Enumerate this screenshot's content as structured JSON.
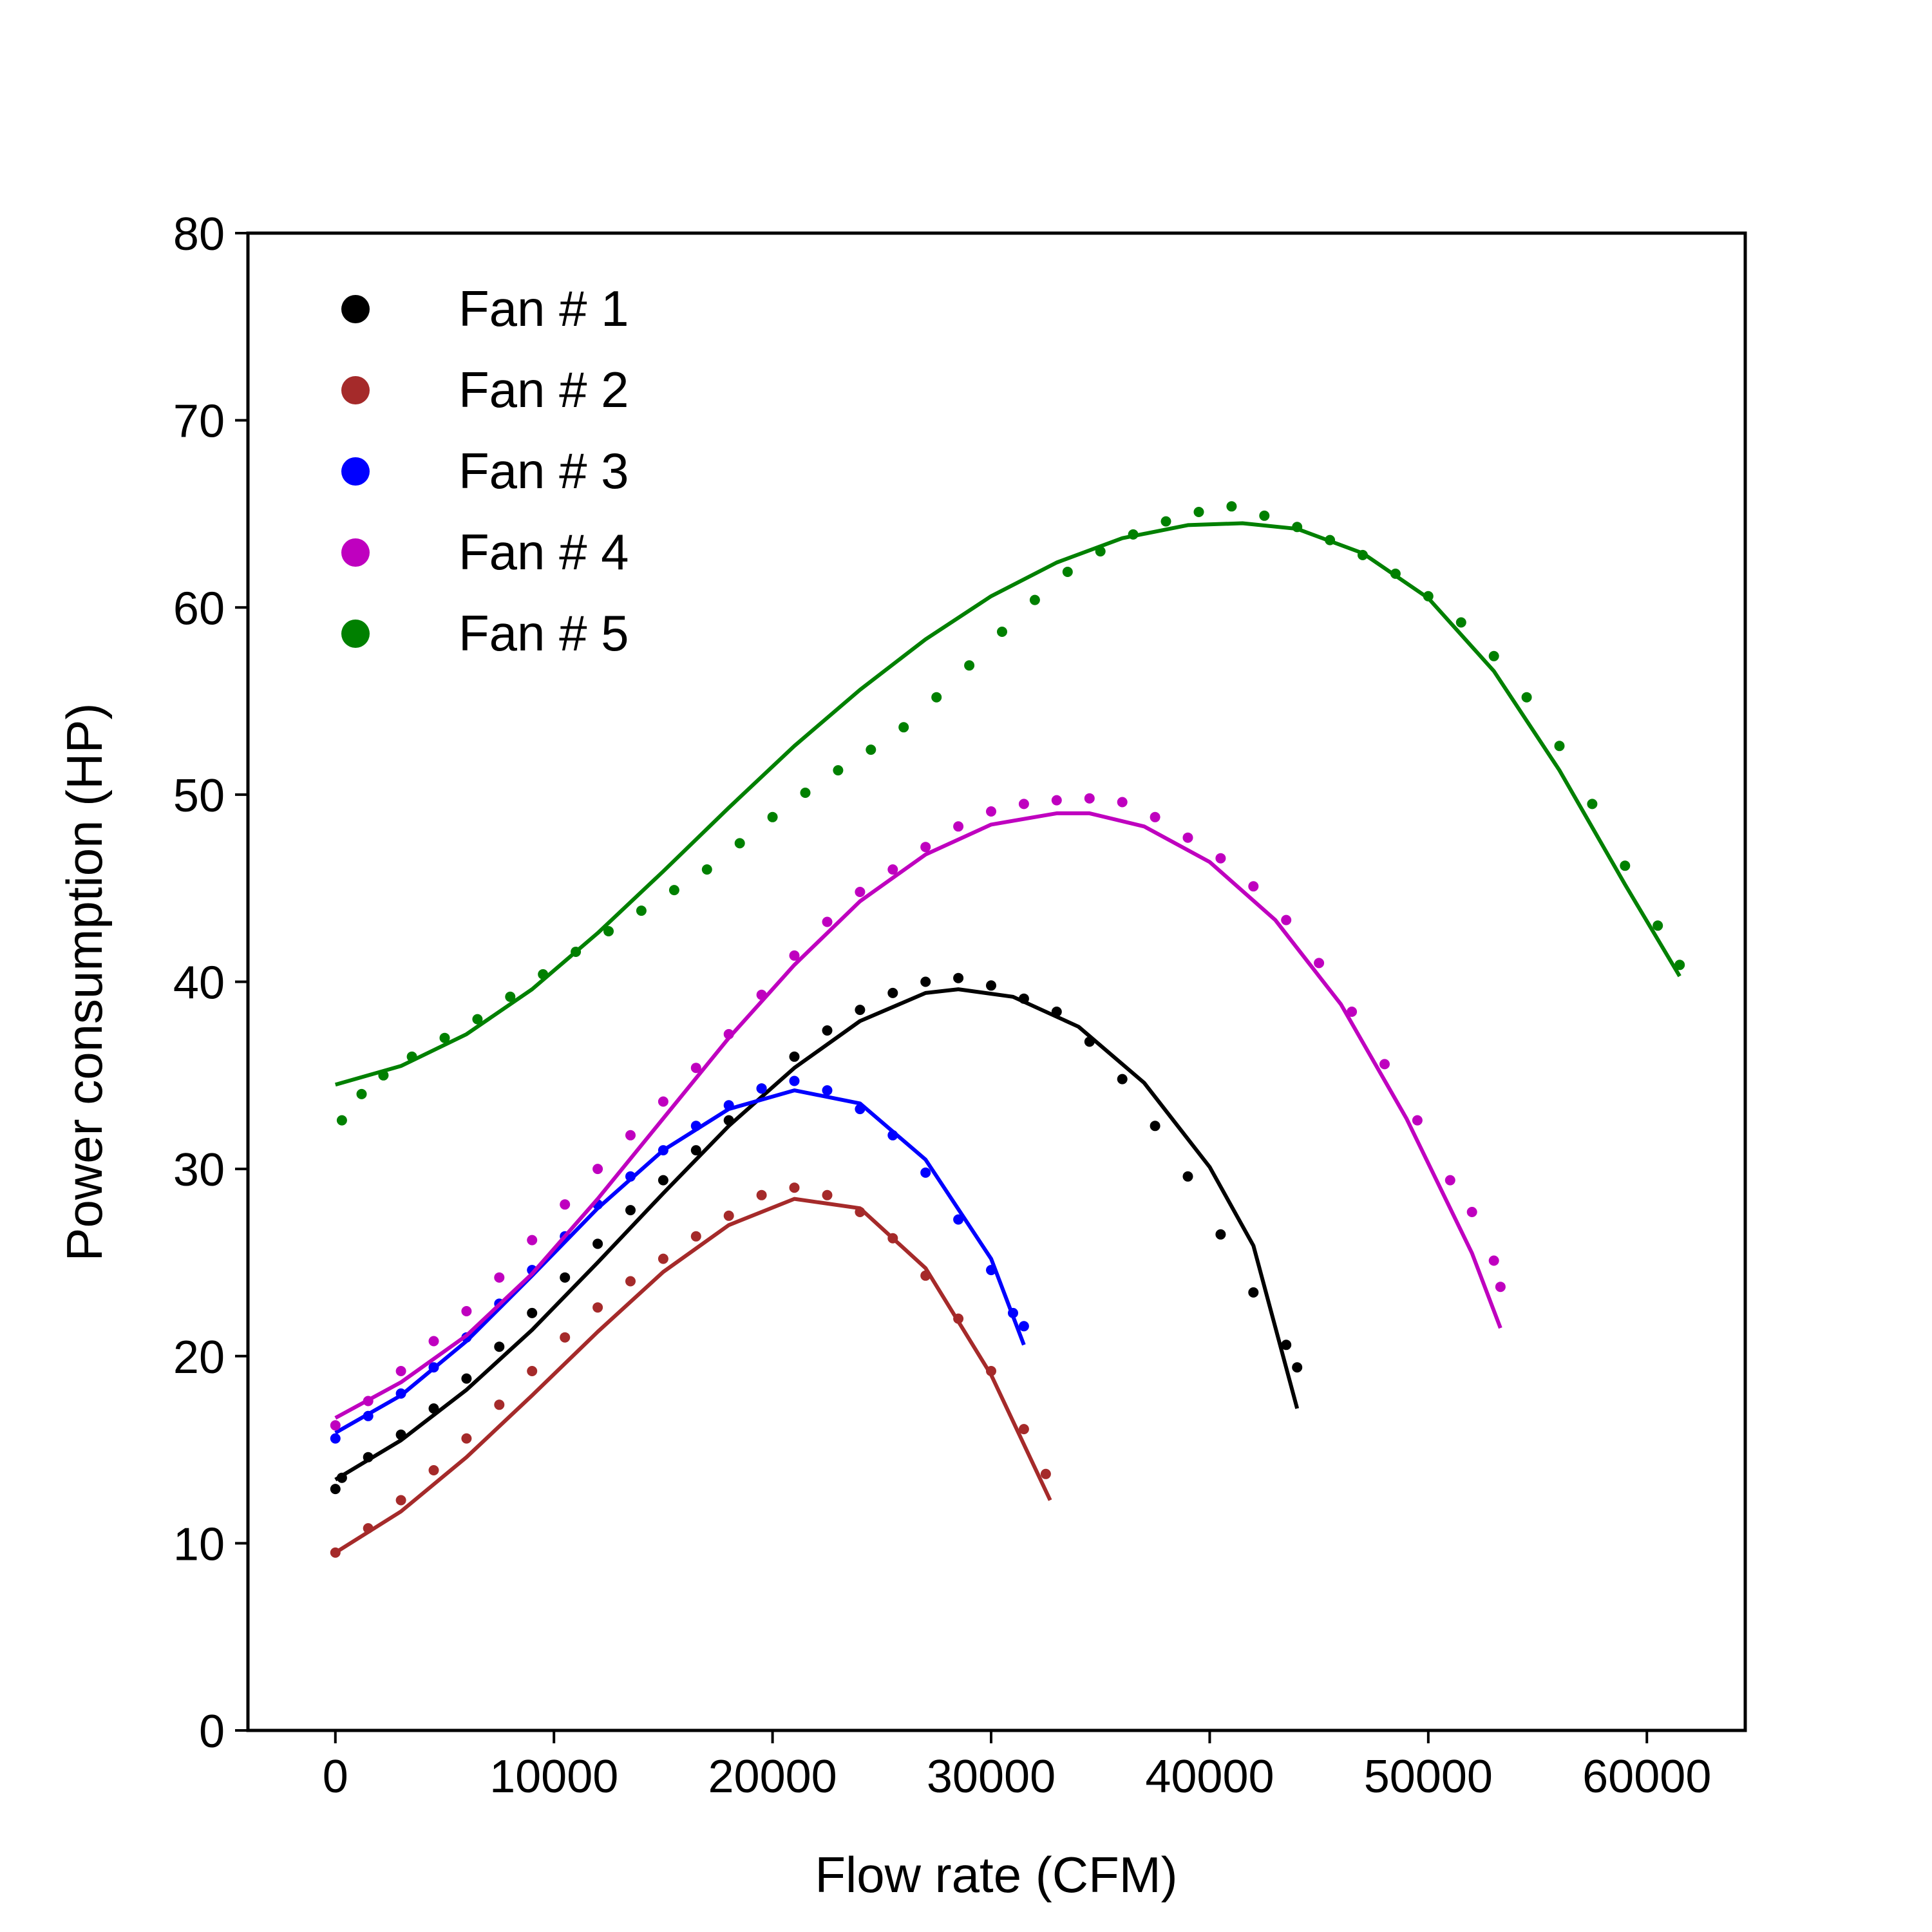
{
  "chart_data": {
    "type": "scatter",
    "title": "",
    "xlabel": "Flow rate (CFM)",
    "ylabel": "Power consumption (HP)",
    "xlim": [
      -4000,
      64500
    ],
    "ylim": [
      0,
      80
    ],
    "xticks": [
      0,
      10000,
      20000,
      30000,
      40000,
      50000,
      60000
    ],
    "yticks": [
      0,
      10,
      20,
      30,
      40,
      50,
      60,
      70,
      80
    ],
    "grid": false,
    "legend_position": "top-left",
    "series": [
      {
        "name": "Fan # 1",
        "color": "#000000",
        "points": [
          [
            0,
            12.9
          ],
          [
            300,
            13.5
          ],
          [
            1500,
            14.6
          ],
          [
            3000,
            15.8
          ],
          [
            4500,
            17.2
          ],
          [
            6000,
            18.8
          ],
          [
            7500,
            20.5
          ],
          [
            9000,
            22.3
          ],
          [
            10500,
            24.2
          ],
          [
            12000,
            26.0
          ],
          [
            13500,
            27.8
          ],
          [
            15000,
            29.4
          ],
          [
            16500,
            31.0
          ],
          [
            18000,
            32.6
          ],
          [
            19500,
            34.3
          ],
          [
            21000,
            36.0
          ],
          [
            22500,
            37.4
          ],
          [
            24000,
            38.5
          ],
          [
            25500,
            39.4
          ],
          [
            27000,
            40.0
          ],
          [
            28500,
            40.2
          ],
          [
            30000,
            39.8
          ],
          [
            31500,
            39.1
          ],
          [
            33000,
            38.4
          ],
          [
            34500,
            36.8
          ],
          [
            36000,
            34.8
          ],
          [
            37500,
            32.3
          ],
          [
            39000,
            29.6
          ],
          [
            40500,
            26.5
          ],
          [
            42000,
            23.4
          ],
          [
            43500,
            20.6
          ],
          [
            44000,
            19.4
          ]
        ],
        "fit": [
          [
            0,
            13.4
          ],
          [
            3000,
            15.5
          ],
          [
            6000,
            18.2
          ],
          [
            9000,
            21.4
          ],
          [
            12000,
            25.0
          ],
          [
            15000,
            28.7
          ],
          [
            18000,
            32.3
          ],
          [
            21000,
            35.4
          ],
          [
            24000,
            37.9
          ],
          [
            27000,
            39.4
          ],
          [
            28500,
            39.6
          ],
          [
            31000,
            39.2
          ],
          [
            34000,
            37.6
          ],
          [
            37000,
            34.6
          ],
          [
            40000,
            30.1
          ],
          [
            42000,
            25.9
          ],
          [
            44000,
            17.2
          ]
        ]
      },
      {
        "name": "Fan # 2",
        "color": "#a52a2a",
        "points": [
          [
            0,
            9.5
          ],
          [
            1500,
            10.8
          ],
          [
            3000,
            12.3
          ],
          [
            4500,
            13.9
          ],
          [
            6000,
            15.6
          ],
          [
            7500,
            17.4
          ],
          [
            9000,
            19.2
          ],
          [
            10500,
            21.0
          ],
          [
            12000,
            22.6
          ],
          [
            13500,
            24.0
          ],
          [
            15000,
            25.2
          ],
          [
            16500,
            26.4
          ],
          [
            18000,
            27.5
          ],
          [
            19500,
            28.6
          ],
          [
            21000,
            29.0
          ],
          [
            22500,
            28.6
          ],
          [
            24000,
            27.7
          ],
          [
            25500,
            26.3
          ],
          [
            27000,
            24.3
          ],
          [
            28500,
            22.0
          ],
          [
            30000,
            19.2
          ],
          [
            31500,
            16.1
          ],
          [
            32500,
            13.7
          ]
        ],
        "fit": [
          [
            0,
            9.5
          ],
          [
            3000,
            11.7
          ],
          [
            6000,
            14.6
          ],
          [
            9000,
            17.9
          ],
          [
            12000,
            21.3
          ],
          [
            15000,
            24.5
          ],
          [
            18000,
            27.0
          ],
          [
            21000,
            28.4
          ],
          [
            24000,
            27.9
          ],
          [
            27000,
            24.7
          ],
          [
            30000,
            19.0
          ],
          [
            32700,
            12.3
          ]
        ]
      },
      {
        "name": "Fan # 3",
        "color": "#0000ff",
        "points": [
          [
            0,
            15.6
          ],
          [
            1500,
            16.8
          ],
          [
            3000,
            18.0
          ],
          [
            4500,
            19.4
          ],
          [
            6000,
            21.0
          ],
          [
            7500,
            22.8
          ],
          [
            9000,
            24.6
          ],
          [
            10500,
            26.4
          ],
          [
            12000,
            28.1
          ],
          [
            13500,
            29.6
          ],
          [
            15000,
            31.0
          ],
          [
            16500,
            32.3
          ],
          [
            18000,
            33.4
          ],
          [
            19500,
            34.3
          ],
          [
            21000,
            34.7
          ],
          [
            22500,
            34.2
          ],
          [
            24000,
            33.2
          ],
          [
            25500,
            31.8
          ],
          [
            27000,
            29.8
          ],
          [
            28500,
            27.3
          ],
          [
            30000,
            24.6
          ],
          [
            31000,
            22.3
          ],
          [
            31500,
            21.6
          ]
        ],
        "fit": [
          [
            0,
            15.9
          ],
          [
            3000,
            17.9
          ],
          [
            6000,
            20.8
          ],
          [
            9000,
            24.3
          ],
          [
            12000,
            27.9
          ],
          [
            15000,
            31.0
          ],
          [
            18000,
            33.2
          ],
          [
            21000,
            34.2
          ],
          [
            24000,
            33.5
          ],
          [
            27000,
            30.5
          ],
          [
            30000,
            25.2
          ],
          [
            31500,
            20.6
          ]
        ]
      },
      {
        "name": "Fan # 4",
        "color": "#bf00bf",
        "points": [
          [
            0,
            16.3
          ],
          [
            1500,
            17.6
          ],
          [
            3000,
            19.2
          ],
          [
            4500,
            20.8
          ],
          [
            6000,
            22.4
          ],
          [
            7500,
            24.2
          ],
          [
            9000,
            26.2
          ],
          [
            10500,
            28.1
          ],
          [
            12000,
            30.0
          ],
          [
            13500,
            31.8
          ],
          [
            15000,
            33.6
          ],
          [
            16500,
            35.4
          ],
          [
            18000,
            37.2
          ],
          [
            19500,
            39.3
          ],
          [
            21000,
            41.4
          ],
          [
            22500,
            43.2
          ],
          [
            24000,
            44.8
          ],
          [
            25500,
            46.0
          ],
          [
            27000,
            47.2
          ],
          [
            28500,
            48.3
          ],
          [
            30000,
            49.1
          ],
          [
            31500,
            49.5
          ],
          [
            33000,
            49.7
          ],
          [
            34500,
            49.8
          ],
          [
            36000,
            49.6
          ],
          [
            37500,
            48.8
          ],
          [
            39000,
            47.7
          ],
          [
            40500,
            46.6
          ],
          [
            42000,
            45.1
          ],
          [
            43500,
            43.3
          ],
          [
            45000,
            41.0
          ],
          [
            46500,
            38.4
          ],
          [
            48000,
            35.6
          ],
          [
            49500,
            32.6
          ],
          [
            51000,
            29.4
          ],
          [
            52000,
            27.7
          ],
          [
            53000,
            25.1
          ],
          [
            53300,
            23.7
          ]
        ],
        "fit": [
          [
            0,
            16.7
          ],
          [
            3000,
            18.6
          ],
          [
            6000,
            21.1
          ],
          [
            9000,
            24.4
          ],
          [
            12000,
            28.4
          ],
          [
            15000,
            32.7
          ],
          [
            18000,
            37.0
          ],
          [
            21000,
            40.9
          ],
          [
            24000,
            44.3
          ],
          [
            27000,
            46.8
          ],
          [
            30000,
            48.4
          ],
          [
            33000,
            49.0
          ],
          [
            34500,
            49.0
          ],
          [
            37000,
            48.3
          ],
          [
            40000,
            46.4
          ],
          [
            43000,
            43.3
          ],
          [
            46000,
            38.8
          ],
          [
            49000,
            32.7
          ],
          [
            52000,
            25.5
          ],
          [
            53300,
            21.5
          ]
        ]
      },
      {
        "name": "Fan # 5",
        "color": "#008000",
        "points": [
          [
            300,
            32.6
          ],
          [
            1200,
            34.0
          ],
          [
            2200,
            35.0
          ],
          [
            3500,
            36.0
          ],
          [
            5000,
            37.0
          ],
          [
            6500,
            38.0
          ],
          [
            8000,
            39.2
          ],
          [
            9500,
            40.4
          ],
          [
            11000,
            41.6
          ],
          [
            12500,
            42.7
          ],
          [
            14000,
            43.8
          ],
          [
            15500,
            44.9
          ],
          [
            17000,
            46.0
          ],
          [
            18500,
            47.4
          ],
          [
            20000,
            48.8
          ],
          [
            21500,
            50.1
          ],
          [
            23000,
            51.3
          ],
          [
            24500,
            52.4
          ],
          [
            26000,
            53.6
          ],
          [
            27500,
            55.2
          ],
          [
            29000,
            56.9
          ],
          [
            30500,
            58.7
          ],
          [
            32000,
            60.4
          ],
          [
            33500,
            61.9
          ],
          [
            35000,
            63.0
          ],
          [
            36500,
            63.9
          ],
          [
            38000,
            64.6
          ],
          [
            39500,
            65.1
          ],
          [
            41000,
            65.4
          ],
          [
            42500,
            64.9
          ],
          [
            44000,
            64.3
          ],
          [
            45500,
            63.6
          ],
          [
            47000,
            62.8
          ],
          [
            48500,
            61.8
          ],
          [
            50000,
            60.6
          ],
          [
            51500,
            59.2
          ],
          [
            53000,
            57.4
          ],
          [
            54500,
            55.2
          ],
          [
            56000,
            52.6
          ],
          [
            57500,
            49.5
          ],
          [
            59000,
            46.2
          ],
          [
            60500,
            43.0
          ],
          [
            61500,
            40.9
          ]
        ],
        "fit": [
          [
            0,
            34.5
          ],
          [
            3000,
            35.5
          ],
          [
            6000,
            37.2
          ],
          [
            9000,
            39.6
          ],
          [
            12000,
            42.6
          ],
          [
            15000,
            45.9
          ],
          [
            18000,
            49.3
          ],
          [
            21000,
            52.6
          ],
          [
            24000,
            55.6
          ],
          [
            27000,
            58.3
          ],
          [
            30000,
            60.6
          ],
          [
            33000,
            62.4
          ],
          [
            36000,
            63.7
          ],
          [
            39000,
            64.4
          ],
          [
            41500,
            64.5
          ],
          [
            44000,
            64.2
          ],
          [
            47000,
            62.9
          ],
          [
            50000,
            60.5
          ],
          [
            53000,
            56.6
          ],
          [
            56000,
            51.3
          ],
          [
            59000,
            45.2
          ],
          [
            61500,
            40.3
          ]
        ]
      }
    ]
  }
}
